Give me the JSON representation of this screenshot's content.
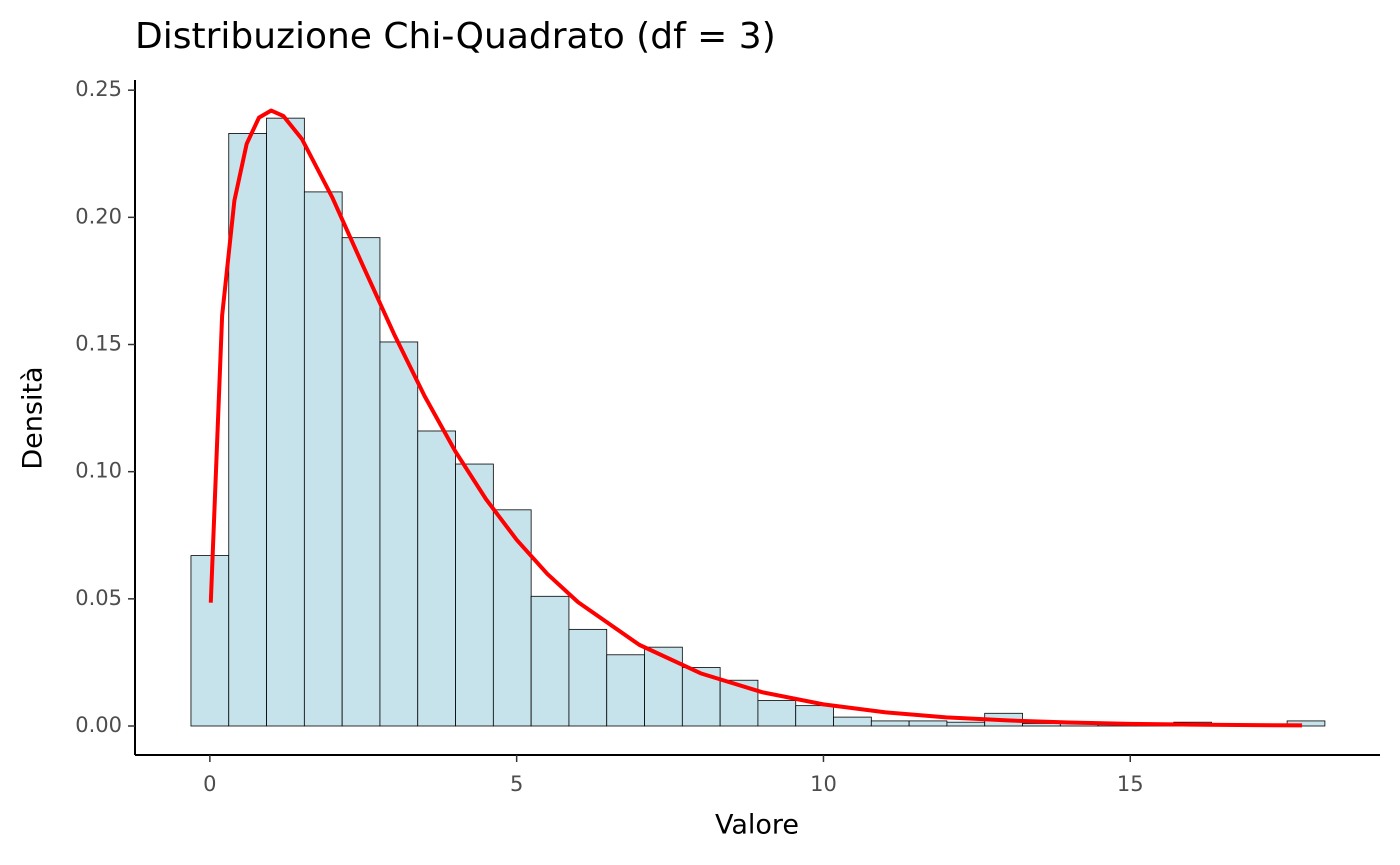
{
  "chart_data": {
    "type": "histogram",
    "title": "Distribuzione Chi-Quadrato (df = 3)",
    "x_label": "Valore",
    "y_label": "Densità",
    "bins": [
      -0.308,
      0.308,
      0.924,
      1.54,
      2.156,
      2.772,
      3.388,
      4.004,
      4.62,
      5.236,
      5.852,
      6.468,
      7.084,
      7.7,
      8.316,
      8.932,
      9.548,
      10.164,
      10.78,
      11.396,
      12.012,
      12.628,
      13.244,
      13.86,
      14.476,
      15.092,
      15.708,
      16.324,
      16.94,
      17.556,
      18.172
    ],
    "values": [
      0.067,
      0.233,
      0.239,
      0.21,
      0.192,
      0.151,
      0.116,
      0.103,
      0.085,
      0.051,
      0.038,
      0.028,
      0.031,
      0.023,
      0.018,
      0.01,
      0.008,
      0.0035,
      0.002,
      0.002,
      0.0015,
      0.005,
      0.001,
      0.001,
      0.0005,
      0.0005,
      0.0015,
      0.0005,
      0.0003,
      0.002
    ],
    "color": "#c6e3ec",
    "edgecolor": "#000000",
    "curve": {
      "color": "#ff0000",
      "x": [
        0.015,
        0.2,
        0.4,
        0.6,
        0.8,
        1.0,
        1.2,
        1.5,
        2.0,
        2.5,
        3.0,
        3.5,
        4.0,
        4.5,
        5.0,
        5.5,
        6.0,
        7.0,
        8.0,
        9.0,
        10,
        11,
        12,
        13,
        14,
        15,
        16,
        17,
        17.8
      ],
      "values": [
        0.0485,
        0.1614,
        0.2066,
        0.2289,
        0.2392,
        0.242,
        0.2398,
        0.2308,
        0.2076,
        0.1807,
        0.1542,
        0.1297,
        0.108,
        0.0892,
        0.0732,
        0.0598,
        0.0487,
        0.0319,
        0.0207,
        0.0133,
        0.0085,
        0.0054,
        0.0034,
        0.0022,
        0.0014,
        0.00085,
        0.00054,
        0.00033,
        0.00023
      ]
    },
    "xlim": [
      -1.22,
      19.07
    ],
    "ylim": [
      -0.0114,
      0.254
    ],
    "xticks": [
      0,
      5,
      10,
      15
    ],
    "yticks": [
      {
        "value": 0,
        "label": "0.00"
      },
      {
        "value": 0.05,
        "label": "0.05"
      },
      {
        "value": 0.1,
        "label": "0.10"
      },
      {
        "value": 0.15,
        "label": "0.15"
      },
      {
        "value": 0.2,
        "label": "0.20"
      },
      {
        "value": 0.25,
        "label": "0.25"
      }
    ]
  }
}
